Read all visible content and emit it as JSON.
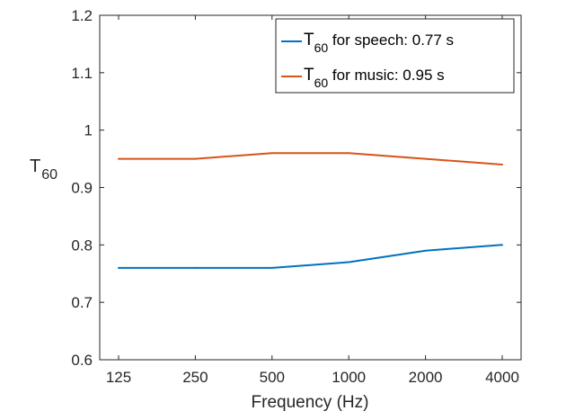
{
  "chart_data": {
    "type": "line",
    "x": [
      "125",
      "250",
      "500",
      "1000",
      "2000",
      "4000"
    ],
    "xlabel": "Frequency (Hz)",
    "ylabel": {
      "main": "T",
      "sub": "60"
    },
    "ylim": [
      0.6,
      1.2
    ],
    "yticks": [
      "0.6",
      "0.7",
      "0.8",
      "0.9",
      "1",
      "1.1",
      "1.2"
    ],
    "grid": false,
    "legend_position": "top-right",
    "series": [
      {
        "name": {
          "main": "T",
          "sub": "60",
          "rest": " for speech: 0.77 s"
        },
        "color": "#0072BD",
        "values": [
          0.76,
          0.76,
          0.76,
          0.77,
          0.79,
          0.8
        ]
      },
      {
        "name": {
          "main": "T",
          "sub": "60",
          "rest": " for music: 0.95 s"
        },
        "color": "#D95319",
        "values": [
          0.95,
          0.95,
          0.96,
          0.96,
          0.95,
          0.94
        ]
      }
    ]
  }
}
